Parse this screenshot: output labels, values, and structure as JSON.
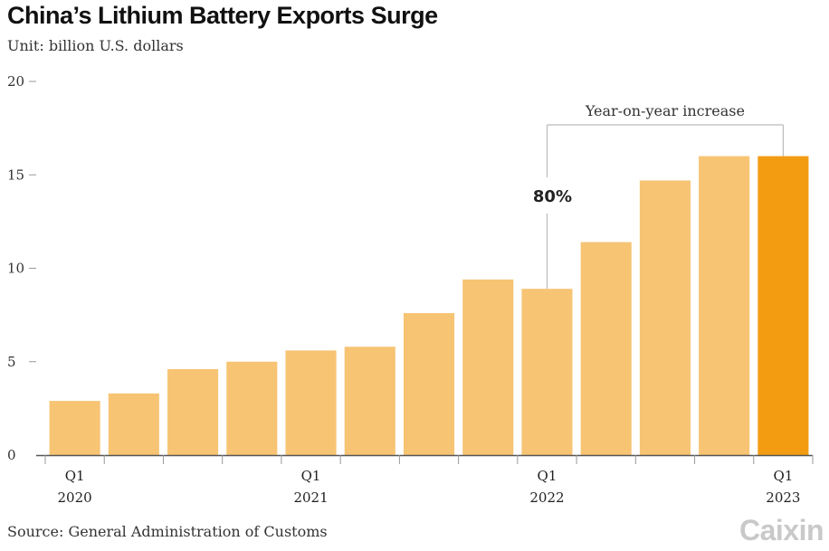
{
  "header": {
    "title": "China’s Lithium Battery Exports Surge",
    "subtitle": "Unit: billion U.S. dollars"
  },
  "footer": {
    "source": "Source: General Administration of Customs",
    "logo_text": "Caixin"
  },
  "colors": {
    "bar": "#f7c474",
    "bar_highlight": "#f39c12",
    "axis": "#555555",
    "gridtick": "#999999",
    "annotation_line": "#bbbbbb"
  },
  "chart_data": {
    "type": "bar",
    "title": "China’s Lithium Battery Exports Surge",
    "ylabel": "Unit: billion U.S. dollars",
    "xlabel": "",
    "ylim": [
      0,
      20
    ],
    "yticks": [
      0,
      5,
      10,
      15,
      20
    ],
    "grid": false,
    "categories": [
      "2020 Q1",
      "2020 Q2",
      "2020 Q3",
      "2020 Q4",
      "2021 Q1",
      "2021 Q2",
      "2021 Q3",
      "2021 Q4",
      "2022 Q1",
      "2022 Q2",
      "2022 Q3",
      "2022 Q4",
      "2023 Q1"
    ],
    "values": [
      2.9,
      3.3,
      4.6,
      5.0,
      5.6,
      5.8,
      7.6,
      9.4,
      8.9,
      11.4,
      14.7,
      16.0,
      16.0
    ],
    "highlight_index": 12,
    "x_tick_labels": [
      {
        "index": 0,
        "line1": "Q1",
        "line2": "2020"
      },
      {
        "index": 4,
        "line1": "Q1",
        "line2": "2021"
      },
      {
        "index": 8,
        "line1": "Q1",
        "line2": "2022"
      },
      {
        "index": 12,
        "line1": "Q1",
        "line2": "2023"
      }
    ],
    "annotation": {
      "label": "Year-on-year increase",
      "value": "80%",
      "from_index": 8,
      "to_index": 12
    }
  }
}
